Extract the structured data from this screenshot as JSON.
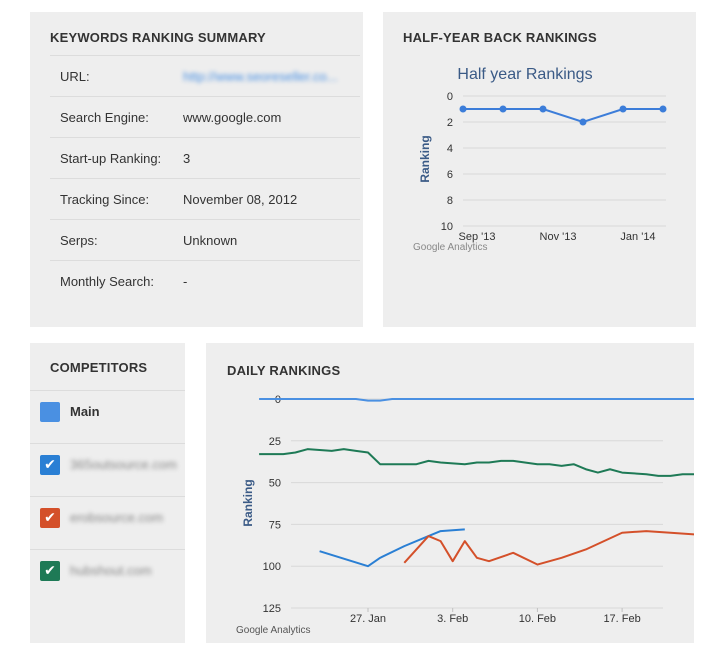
{
  "summary": {
    "title": "KEYWORDS RANKING SUMMARY",
    "rows": [
      {
        "key": "URL:",
        "value": "http://www.seoreseller.co...",
        "blurred": true
      },
      {
        "key": "Search Engine:",
        "value": "www.google.com"
      },
      {
        "key": "Start-up Ranking:",
        "value": "3"
      },
      {
        "key": "Tracking Since:",
        "value": "November 08, 2012"
      },
      {
        "key": "Serps:",
        "value": "Unknown"
      },
      {
        "key": "Monthly Search:",
        "value": "-"
      }
    ]
  },
  "half_year": {
    "title": "HALF-YEAR BACK RANKINGS",
    "footer": "Google Analytics"
  },
  "competitors": {
    "title": "COMPETITORS",
    "items": [
      {
        "label": "Main",
        "color": "#4a90e2",
        "checked": false
      },
      {
        "label": "365outsource.com",
        "color": "#2a7fd4",
        "checked": true
      },
      {
        "label": "erobsource.com",
        "color": "#d4502a",
        "checked": true
      },
      {
        "label": "hubshout.com",
        "color": "#1e7a56",
        "checked": true
      }
    ]
  },
  "daily": {
    "title": "DAILY RANKINGS",
    "footer": "Google Analytics"
  },
  "chart_data": [
    {
      "type": "line",
      "title": "Half year Rankings",
      "ylabel": "Ranking",
      "ylim": [
        0,
        10
      ],
      "y_reversed": true,
      "y_ticks": [
        0,
        2,
        4,
        6,
        8,
        10
      ],
      "x_tick_labels": [
        "Sep '13",
        "Nov '13",
        "Jan '14"
      ],
      "series": [
        {
          "color": "#3c7dd9",
          "values": [
            1,
            1,
            1,
            2,
            1,
            1
          ]
        }
      ]
    },
    {
      "type": "line",
      "ylabel": "Ranking",
      "ylim": [
        0,
        125
      ],
      "y_reversed": true,
      "y_ticks": [
        0,
        25,
        50,
        75,
        100,
        125
      ],
      "x_tick_labels": [
        "27. Jan",
        "3. Feb",
        "10. Feb",
        "17. Feb"
      ],
      "series": [
        {
          "name": "Main",
          "color": "#4a90e2",
          "points": [
            [
              -9,
              0
            ],
            [
              -7,
              0
            ],
            [
              -5,
              0
            ],
            [
              -3,
              0
            ],
            [
              -1,
              0
            ],
            [
              0,
              1
            ],
            [
              1,
              1
            ],
            [
              2,
              0
            ],
            [
              4,
              0
            ],
            [
              6,
              0
            ],
            [
              8,
              0
            ],
            [
              10,
              0
            ],
            [
              12,
              0
            ],
            [
              14,
              0
            ],
            [
              16,
              0
            ],
            [
              18,
              0
            ],
            [
              20,
              0
            ],
            [
              22,
              0
            ],
            [
              24,
              0
            ],
            [
              26,
              0
            ],
            [
              27,
              0
            ]
          ]
        },
        {
          "name": "365outsource.com",
          "color": "#2a7fd4",
          "points": [
            [
              -4,
              91
            ],
            [
              0,
              100
            ],
            [
              1,
              95
            ],
            [
              3,
              88
            ],
            [
              5,
              82
            ],
            [
              6,
              79
            ],
            [
              8,
              78
            ]
          ]
        },
        {
          "name": "erobsource.com",
          "color": "#d4502a",
          "points": [
            [
              3,
              98
            ],
            [
              5,
              82
            ],
            [
              6,
              85
            ],
            [
              7,
              97
            ],
            [
              8,
              85
            ],
            [
              9,
              95
            ],
            [
              10,
              97
            ],
            [
              12,
              92
            ],
            [
              14,
              99
            ],
            [
              16,
              95
            ],
            [
              18,
              90
            ],
            [
              21,
              80
            ],
            [
              23,
              79
            ],
            [
              25,
              80
            ],
            [
              27,
              81
            ]
          ]
        },
        {
          "name": "hubshout.com",
          "color": "#1e7a56",
          "points": [
            [
              -9,
              33
            ],
            [
              -7,
              33
            ],
            [
              -6,
              32
            ],
            [
              -5,
              30
            ],
            [
              -3,
              31
            ],
            [
              -2,
              30
            ],
            [
              -1,
              31
            ],
            [
              0,
              32
            ],
            [
              1,
              39
            ],
            [
              3,
              39
            ],
            [
              4,
              39
            ],
            [
              5,
              37
            ],
            [
              6,
              38
            ],
            [
              8,
              39
            ],
            [
              9,
              38
            ],
            [
              10,
              38
            ],
            [
              11,
              37
            ],
            [
              12,
              37
            ],
            [
              14,
              39
            ],
            [
              15,
              39
            ],
            [
              16,
              40
            ],
            [
              17,
              39
            ],
            [
              18,
              42
            ],
            [
              19,
              44
            ],
            [
              20,
              42
            ],
            [
              21,
              44
            ],
            [
              23,
              45
            ],
            [
              24,
              46
            ],
            [
              25,
              46
            ],
            [
              26,
              45
            ],
            [
              27,
              45
            ]
          ]
        }
      ]
    }
  ]
}
